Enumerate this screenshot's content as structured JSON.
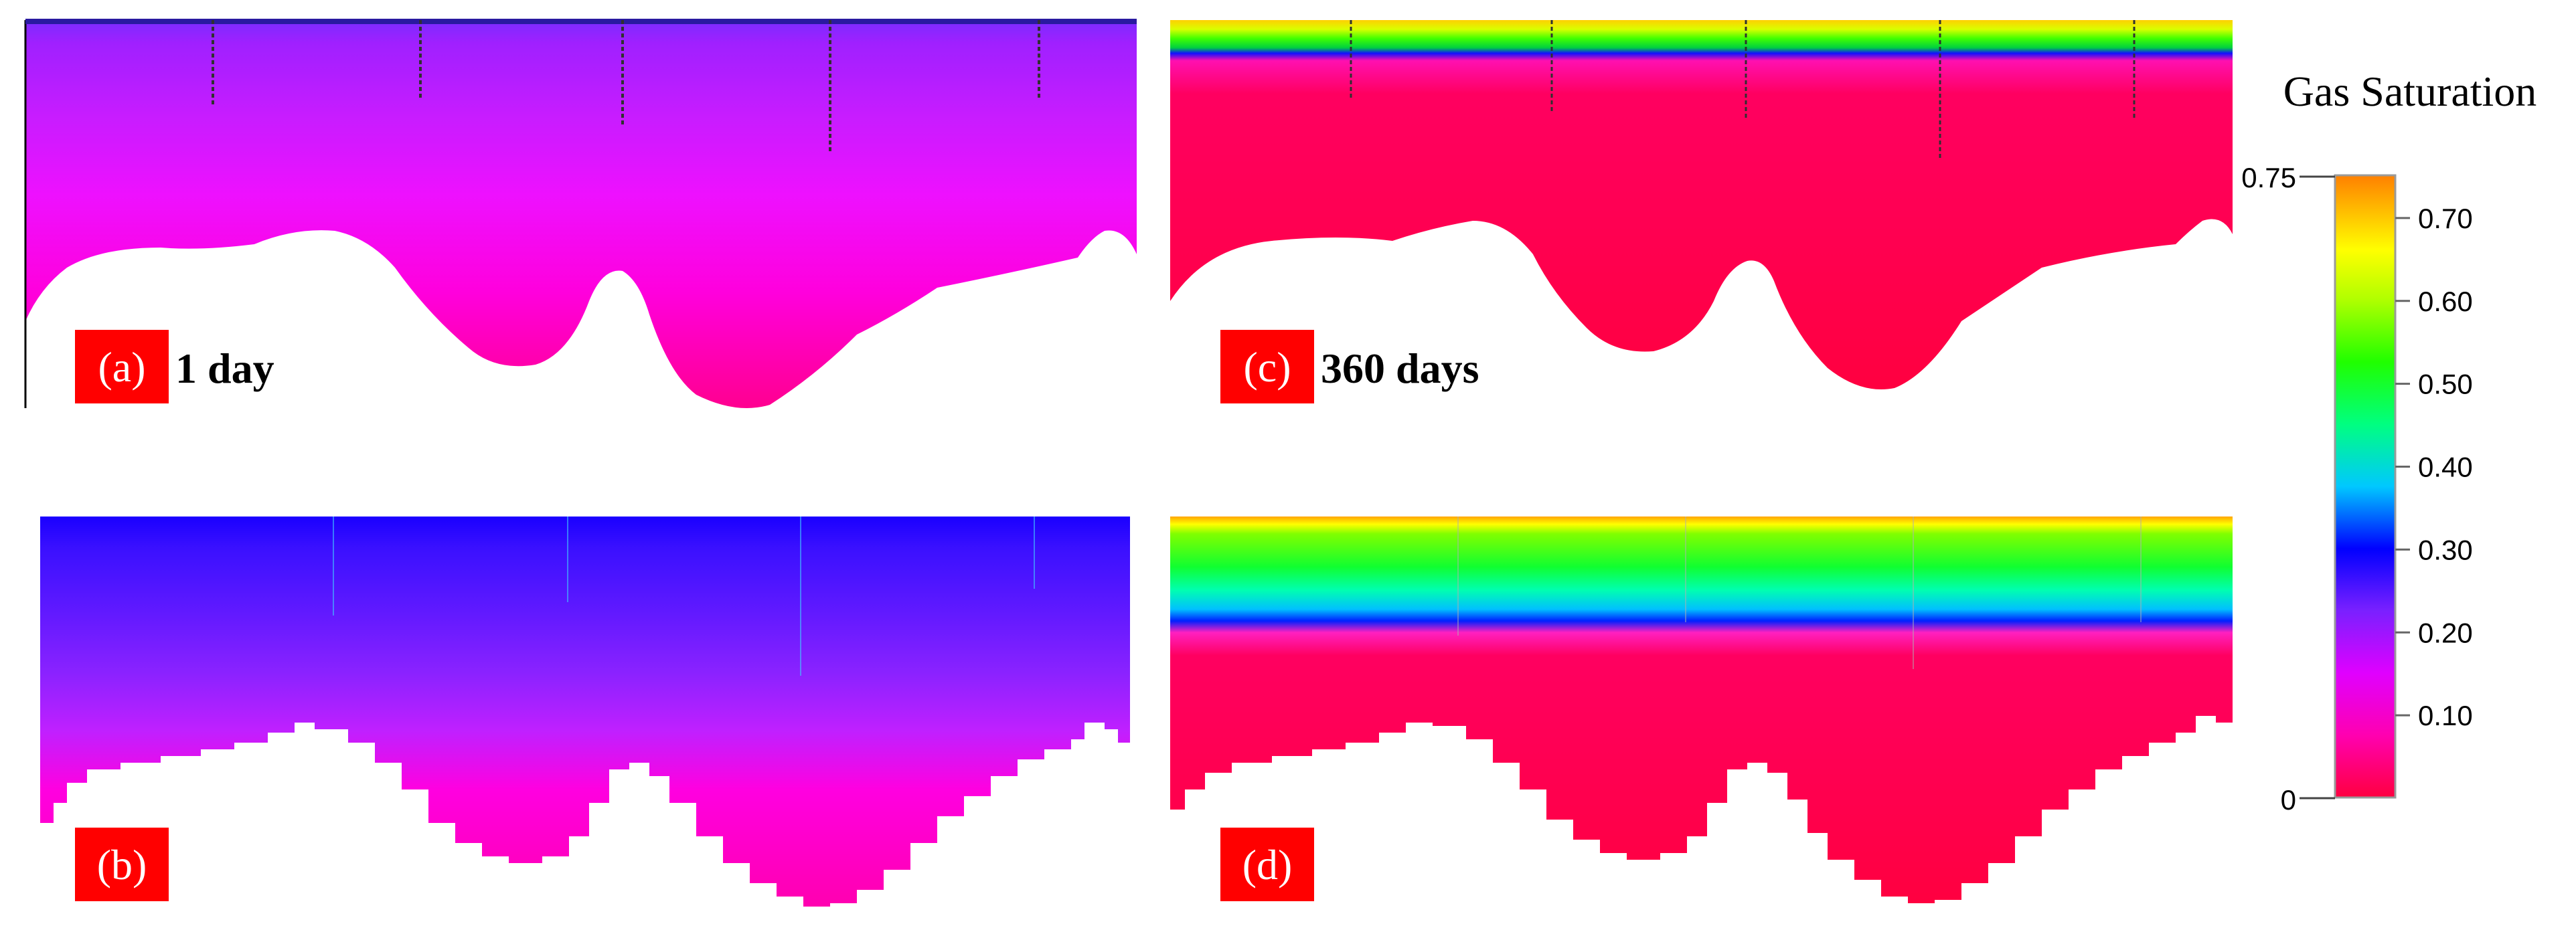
{
  "panels": [
    {
      "id": "a",
      "label": "(a)",
      "time": "1 day"
    },
    {
      "id": "b",
      "label": "(b)",
      "time": ""
    },
    {
      "id": "c",
      "label": "(c)",
      "time": "360 days"
    },
    {
      "id": "d",
      "label": "(d)",
      "time": ""
    }
  ],
  "colorbar": {
    "title": "Gas Saturation",
    "max_label": "0.75",
    "min_label": "0",
    "ticks": [
      "0.70",
      "0.60",
      "0.50",
      "0.40",
      "0.30",
      "0.20",
      "0.10"
    ],
    "tick_values": [
      0.7,
      0.6,
      0.5,
      0.4,
      0.3,
      0.2,
      0.1
    ],
    "colors": [
      "#ff0040",
      "#ff00cc",
      "#9a26ff",
      "#0000ff",
      "#00e0ff",
      "#00ff40",
      "#60ff00",
      "#ffff00",
      "#ff8000"
    ],
    "range": [
      0,
      0.75
    ]
  },
  "colors": {
    "label_bg": "#ff0000",
    "label_fg": "#ffffff",
    "time_fg": "#000000"
  }
}
